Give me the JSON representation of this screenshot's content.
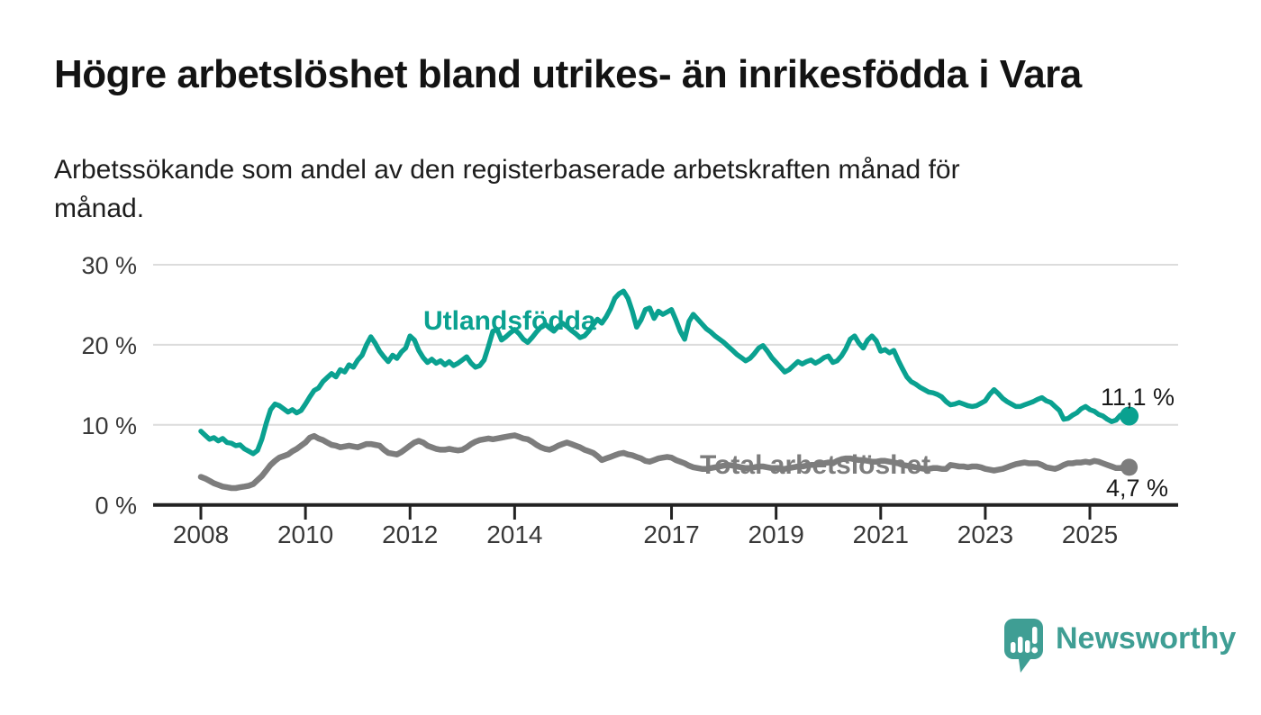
{
  "header": {
    "title": "Högre arbetslöshet bland utrikes- än inrikesfödda i Vara",
    "subtitle_line1": "Arbetssökande som andel av den registerbaserade arbetskraften månad för",
    "subtitle_line2": "månad."
  },
  "footer": {
    "brand": "Newsworthy",
    "logo_icon": "speech-bubble-bar-chart-icon",
    "brand_color": "#3f9e94"
  },
  "colors": {
    "foreign_born_line": "#0aa190",
    "total_line": "#7d7d7d",
    "axis": "#222222",
    "gridline": "#dcdcdc",
    "tick_label": "#383838",
    "background": "#ffffff"
  },
  "chart_data": {
    "type": "line",
    "title": "Högre arbetslöshet bland utrikes- än inrikesfödda i Vara",
    "subtitle": "Arbetssökande som andel av den registerbaserade arbetskraften månad för månad.",
    "unit": "%",
    "frequency": "monthly",
    "x_start_year": 2008,
    "x_end_label": "okt 2025",
    "ylim": [
      0,
      30
    ],
    "grid": true,
    "legend_position": "inline-labels",
    "yticks": [
      {
        "value": 0,
        "label": "0 %"
      },
      {
        "value": 10,
        "label": "10 %"
      },
      {
        "value": 20,
        "label": "20 %"
      },
      {
        "value": 30,
        "label": "30 %"
      }
    ],
    "xticks": [
      2008,
      2010,
      2012,
      2014,
      2017,
      2019,
      2021,
      2023,
      2025
    ],
    "series": [
      {
        "name": "Utlandsfödda",
        "inline_label": "Utlandsfödda",
        "end_label": "11,1 %",
        "end_value": 11.1,
        "color": "#0aa190",
        "stroke_width": 5.5,
        "dot_radius": 10.5,
        "values": [
          9.2,
          8.7,
          8.2,
          8.4,
          8.0,
          8.3,
          7.8,
          7.7,
          7.4,
          7.5,
          7.0,
          6.7,
          6.4,
          6.8,
          8.2,
          10.2,
          11.9,
          12.6,
          12.4,
          12.0,
          11.6,
          11.9,
          11.5,
          11.8,
          12.6,
          13.5,
          14.3,
          14.6,
          15.4,
          15.9,
          16.4,
          16.0,
          16.9,
          16.6,
          17.5,
          17.2,
          18.1,
          18.7,
          20.0,
          21.0,
          20.2,
          19.2,
          18.5,
          17.9,
          18.7,
          18.3,
          19.1,
          19.6,
          21.1,
          20.6,
          19.3,
          18.4,
          17.8,
          18.2,
          17.7,
          18.0,
          17.5,
          17.9,
          17.4,
          17.7,
          18.1,
          18.5,
          17.7,
          17.2,
          17.4,
          18.1,
          19.8,
          21.7,
          21.9,
          20.6,
          21.0,
          21.5,
          21.9,
          21.4,
          20.7,
          20.3,
          20.9,
          21.6,
          22.2,
          22.6,
          22.1,
          21.7,
          22.3,
          22.7,
          22.3,
          21.8,
          21.4,
          20.9,
          21.1,
          21.7,
          22.5,
          23.2,
          22.7,
          23.5,
          24.5,
          25.8,
          26.4,
          26.7,
          25.8,
          24.2,
          22.2,
          23.1,
          24.4,
          24.6,
          23.3,
          24.2,
          23.8,
          24.1,
          24.4,
          23.1,
          21.7,
          20.7,
          22.9,
          23.8,
          23.2,
          22.6,
          22.0,
          21.6,
          21.1,
          20.7,
          20.3,
          19.8,
          19.3,
          18.8,
          18.4,
          18.0,
          18.3,
          18.9,
          19.6,
          19.9,
          19.2,
          18.4,
          17.8,
          17.2,
          16.6,
          16.9,
          17.4,
          17.9,
          17.6,
          17.9,
          18.1,
          17.7,
          18.0,
          18.4,
          18.6,
          17.8,
          18.0,
          18.6,
          19.5,
          20.7,
          21.1,
          20.2,
          19.6,
          20.6,
          21.1,
          20.5,
          19.2,
          19.4,
          19.0,
          19.3,
          18.1,
          17.0,
          16.0,
          15.4,
          15.1,
          14.7,
          14.4,
          14.1,
          14.0,
          13.8,
          13.5,
          12.9,
          12.5,
          12.6,
          12.8,
          12.6,
          12.4,
          12.3,
          12.4,
          12.7,
          13.0,
          13.8,
          14.4,
          13.9,
          13.3,
          12.9,
          12.6,
          12.3,
          12.3,
          12.5,
          12.7,
          12.9,
          13.2,
          13.4,
          13.0,
          12.8,
          12.3,
          11.8,
          10.7,
          10.8,
          11.2,
          11.5,
          12.0,
          12.3,
          11.9,
          11.7,
          11.3,
          11.1,
          10.7,
          10.4,
          10.6,
          11.2,
          11.3,
          11.1
        ]
      },
      {
        "name": "Total arbetslöshet",
        "inline_label": "Total arbetslöshet",
        "end_label": "4,7 %",
        "end_value": 4.7,
        "color": "#7d7d7d",
        "stroke_width": 6.5,
        "dot_radius": 9.5,
        "values": [
          3.5,
          3.3,
          3.0,
          2.7,
          2.5,
          2.3,
          2.2,
          2.1,
          2.1,
          2.2,
          2.3,
          2.4,
          2.6,
          3.1,
          3.6,
          4.3,
          5.0,
          5.5,
          5.9,
          6.1,
          6.3,
          6.7,
          7.0,
          7.4,
          7.8,
          8.4,
          8.6,
          8.3,
          8.1,
          7.8,
          7.5,
          7.4,
          7.2,
          7.3,
          7.4,
          7.3,
          7.2,
          7.4,
          7.6,
          7.6,
          7.5,
          7.4,
          6.9,
          6.5,
          6.4,
          6.3,
          6.6,
          7.0,
          7.4,
          7.8,
          8.0,
          7.8,
          7.4,
          7.2,
          7.0,
          6.9,
          6.9,
          7.0,
          6.9,
          6.8,
          6.9,
          7.2,
          7.6,
          7.9,
          8.1,
          8.2,
          8.3,
          8.2,
          8.3,
          8.4,
          8.5,
          8.6,
          8.7,
          8.5,
          8.3,
          8.2,
          7.9,
          7.5,
          7.2,
          7.0,
          6.9,
          7.1,
          7.4,
          7.6,
          7.8,
          7.6,
          7.4,
          7.2,
          6.9,
          6.7,
          6.5,
          6.1,
          5.6,
          5.8,
          6.0,
          6.2,
          6.4,
          6.5,
          6.3,
          6.2,
          6.0,
          5.8,
          5.5,
          5.4,
          5.6,
          5.8,
          5.9,
          6.0,
          5.9,
          5.6,
          5.4,
          5.2,
          4.9,
          4.7,
          4.6,
          4.5,
          4.5,
          4.6,
          4.7,
          4.8,
          4.9,
          5.0,
          4.9,
          4.8,
          4.7,
          4.6,
          4.6,
          4.7,
          4.8,
          4.8,
          4.7,
          4.6,
          4.6,
          4.5,
          4.5,
          4.6,
          4.7,
          4.8,
          4.8,
          4.9,
          5.0,
          5.0,
          5.1,
          5.2,
          5.3,
          5.2,
          5.5,
          5.7,
          5.8,
          5.8,
          5.7,
          5.6,
          5.6,
          5.5,
          5.4,
          5.4,
          5.5,
          5.5,
          5.4,
          5.3,
          5.2,
          5.0,
          4.9,
          4.8,
          4.7,
          4.6,
          4.5,
          4.5,
          4.6,
          4.6,
          4.5,
          4.5,
          5.0,
          4.9,
          4.8,
          4.8,
          4.7,
          4.8,
          4.8,
          4.7,
          4.5,
          4.4,
          4.3,
          4.4,
          4.5,
          4.7,
          4.9,
          5.1,
          5.2,
          5.3,
          5.2,
          5.2,
          5.2,
          5.0,
          4.7,
          4.6,
          4.5,
          4.7,
          5.0,
          5.2,
          5.2,
          5.3,
          5.3,
          5.4,
          5.3,
          5.5,
          5.4,
          5.2,
          5.0,
          4.8,
          4.6,
          4.6,
          4.8,
          4.7
        ]
      }
    ]
  }
}
